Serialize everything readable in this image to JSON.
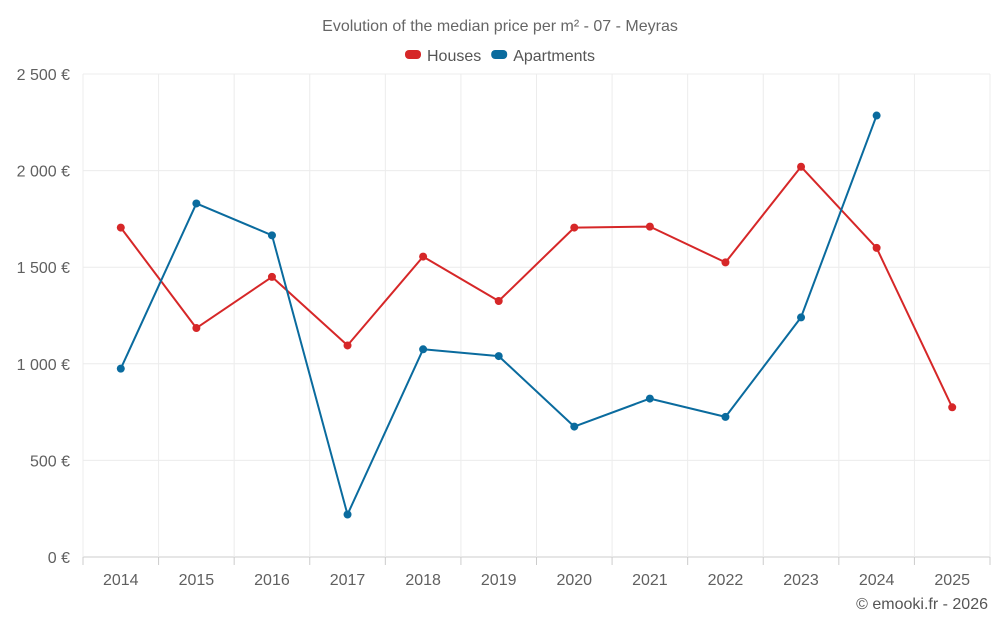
{
  "chart_data": {
    "type": "line",
    "title": "Evolution of the median price per m² - 07 - Meyras",
    "categories": [
      "2014",
      "2015",
      "2016",
      "2017",
      "2018",
      "2019",
      "2020",
      "2021",
      "2022",
      "2023",
      "2024",
      "2025"
    ],
    "y_ticks": [
      "0 €",
      "500 €",
      "1 000 €",
      "1 500 €",
      "2 000 €",
      "2 500 €"
    ],
    "ylim": [
      0,
      2500
    ],
    "grid": true,
    "legend_position": "top-center",
    "series": [
      {
        "name": "Houses",
        "color": "#d62728",
        "values": [
          1705,
          1185,
          1450,
          1095,
          1555,
          1325,
          1705,
          1710,
          1525,
          2020,
          1600,
          775
        ]
      },
      {
        "name": "Apartments",
        "color": "#0a6b9e",
        "values": [
          975,
          1830,
          1665,
          220,
          1075,
          1040,
          675,
          820,
          725,
          1240,
          2285,
          null
        ]
      }
    ],
    "credit": "© emooki.fr - 2026"
  }
}
